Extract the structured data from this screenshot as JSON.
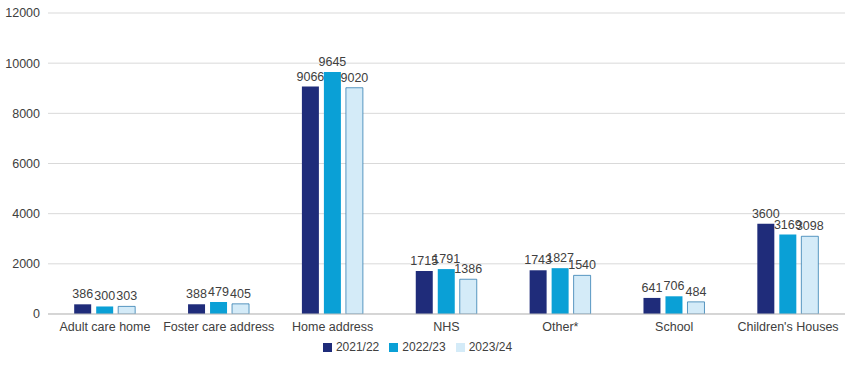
{
  "chart_data": {
    "type": "bar",
    "categories": [
      "Adult care home",
      "Foster care address",
      "Home address",
      "NHS",
      "Other*",
      "School",
      "Children's Houses"
    ],
    "series": [
      {
        "name": "2021/22",
        "color": "#1f2c7a",
        "values": [
          386,
          388,
          9066,
          1715,
          1743,
          641,
          3600
        ]
      },
      {
        "name": "2022/23",
        "color": "#0aa0d6",
        "values": [
          300,
          479,
          9645,
          1791,
          1827,
          706,
          3169
        ]
      },
      {
        "name": "2023/24",
        "color": "#d4ebf8",
        "values": [
          303,
          405,
          9020,
          1386,
          1540,
          484,
          3098
        ]
      }
    ],
    "ylim": [
      0,
      12000
    ],
    "yticks": [
      0,
      2000,
      4000,
      6000,
      8000,
      10000,
      12000
    ],
    "grid": true,
    "legend": "bottom",
    "data_labels": true
  }
}
